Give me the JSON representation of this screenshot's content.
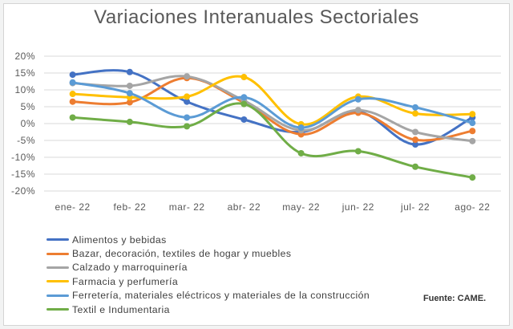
{
  "chart_data": {
    "type": "line",
    "title": "Variaciones Interanuales Sectoriales",
    "source": "Fuente: CAME.",
    "categories": [
      "ene- 22",
      "feb- 22",
      "mar- 22",
      "abr- 22",
      "may- 22",
      "jun- 22",
      "jul- 22",
      "ago- 22"
    ],
    "ylim": [
      -20,
      20
    ],
    "yticks": [
      20,
      15,
      10,
      5,
      0,
      -5,
      -10,
      -15,
      -20
    ],
    "ytick_labels": [
      "20%",
      "15%",
      "10%",
      "5%",
      "0%",
      "-5%",
      "-10%",
      "-15%",
      "-20%"
    ],
    "grid": true,
    "legend_position": "bottom-left",
    "series": [
      {
        "name": "Alimentos y bebidas",
        "color": "#4472c4",
        "values": [
          14.5,
          15.3,
          6.5,
          1.2,
          -2.5,
          3.5,
          -6.2,
          1.8
        ]
      },
      {
        "name": "Bazar, decoración, textiles de hogar y muebles",
        "color": "#ed7d31",
        "values": [
          6.5,
          6.3,
          13.5,
          6.2,
          -3.2,
          3.2,
          -4.8,
          -2.2
        ]
      },
      {
        "name": "Calzado y marroquinería",
        "color": "#a5a5a5",
        "values": [
          12.0,
          11.2,
          14.0,
          6.8,
          -2.0,
          4.0,
          -2.5,
          -5.2
        ]
      },
      {
        "name": "Farmacia y perfumería",
        "color": "#ffc000",
        "values": [
          8.8,
          7.8,
          8.0,
          13.8,
          -0.2,
          8.0,
          3.0,
          2.8
        ]
      },
      {
        "name": "Ferretería, materiales eléctricos y materiales de la construcción",
        "color": "#5b9bd5",
        "values": [
          12.2,
          9.0,
          1.8,
          7.8,
          -1.2,
          7.2,
          4.8,
          0.2
        ]
      },
      {
        "name": "Textil e Indumentaria",
        "color": "#70ad47",
        "values": [
          1.8,
          0.5,
          -0.8,
          5.8,
          -8.8,
          -8.2,
          -12.8,
          -16.0
        ]
      }
    ]
  }
}
